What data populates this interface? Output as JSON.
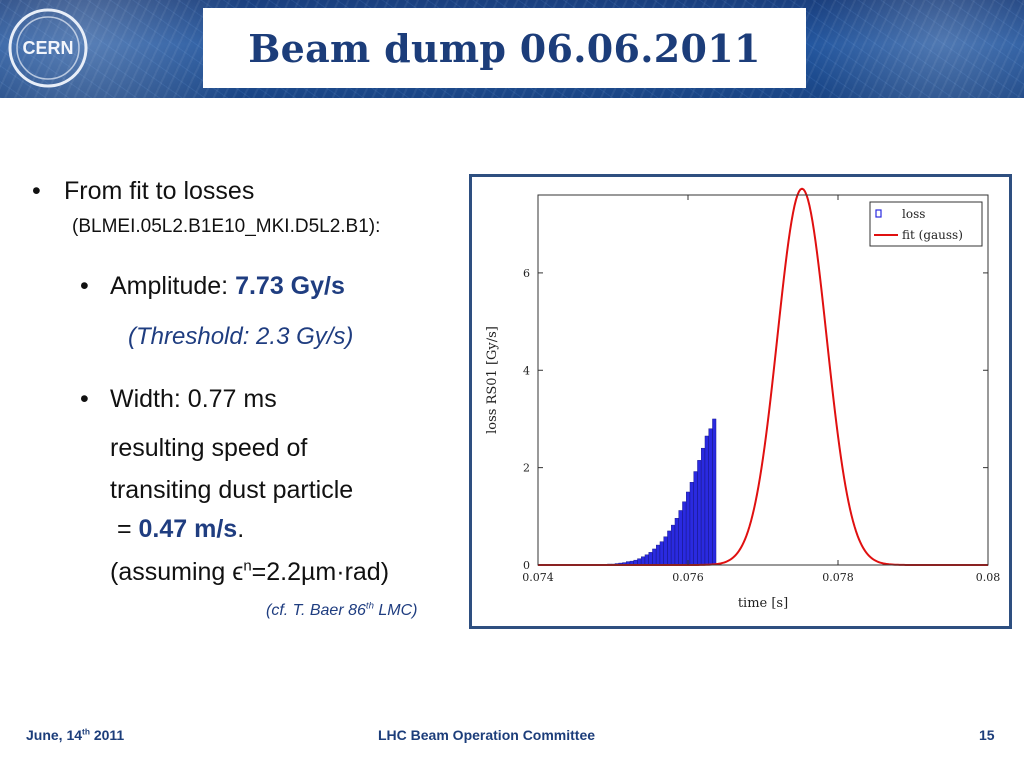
{
  "header": {
    "title": "Beam dump 06.06.2011",
    "logo_text": "CERN"
  },
  "content": {
    "bullet1": "From fit to losses",
    "bullet1_sub": "(BLMEI.05L2.B1E10_MKI.D5L2.B1):",
    "amplitude_label": "Amplitude: ",
    "amplitude_value": "7.73 Gy/s",
    "threshold": "(Threshold: 2.3 Gy/s)",
    "width": "Width: 0.77 ms",
    "speed_line1": "resulting speed of",
    "speed_line2": "transiting dust particle",
    "speed_eq": " = ",
    "speed_value": "0.47 m/s",
    "speed_period": ".",
    "assume_a": "(assuming ϵ",
    "assume_sup": "n",
    "assume_b": "=2.2µm·rad)",
    "ref_a": "(cf. T. Baer 86",
    "ref_sup": "th",
    "ref_b": " LMC)"
  },
  "footer": {
    "date_a": "June, 14",
    "date_sup": "th",
    "date_b": " 2011",
    "committee": "LHC Beam Operation Committee",
    "page": "15"
  },
  "colors": {
    "accent": "#1f3d80",
    "fit_line": "#e01010",
    "loss_bars": "#2a2ae0"
  },
  "chart_data": {
    "type": "bar",
    "xlabel": "time [s]",
    "ylabel": "loss RS01 [Gy/s]",
    "xlim": [
      0.074,
      0.08
    ],
    "ylim": [
      0,
      7.6
    ],
    "xticks": [
      "0.074",
      "0.076",
      "0.078",
      "0.08"
    ],
    "yticks": [
      "0",
      "2",
      "4",
      "6"
    ],
    "legend": {
      "position": "top-right",
      "entries": [
        "loss",
        "fit (gauss)"
      ]
    },
    "fit": {
      "amplitude": 7.73,
      "center": 0.07752,
      "sigma": 0.000328
    },
    "series": [
      {
        "name": "loss",
        "style": "bar",
        "x": [
          0.07495,
          0.075,
          0.07505,
          0.0751,
          0.07515,
          0.0752,
          0.07525,
          0.0753,
          0.07535,
          0.0754,
          0.07545,
          0.0755,
          0.07555,
          0.0756,
          0.07565,
          0.0757,
          0.07575,
          0.0758,
          0.07585,
          0.0759,
          0.07595,
          0.076,
          0.07605,
          0.0761,
          0.07615,
          0.0762,
          0.07625,
          0.0763,
          0.07635
        ],
        "y": [
          0.02,
          0.02,
          0.03,
          0.04,
          0.05,
          0.07,
          0.08,
          0.1,
          0.13,
          0.17,
          0.21,
          0.26,
          0.33,
          0.41,
          0.48,
          0.58,
          0.7,
          0.82,
          0.96,
          1.12,
          1.3,
          1.5,
          1.7,
          1.92,
          2.15,
          2.4,
          2.65,
          2.8,
          3.0
        ]
      },
      {
        "name": "fit (gauss)",
        "style": "line",
        "from": 0.074,
        "to": 0.08
      }
    ]
  }
}
